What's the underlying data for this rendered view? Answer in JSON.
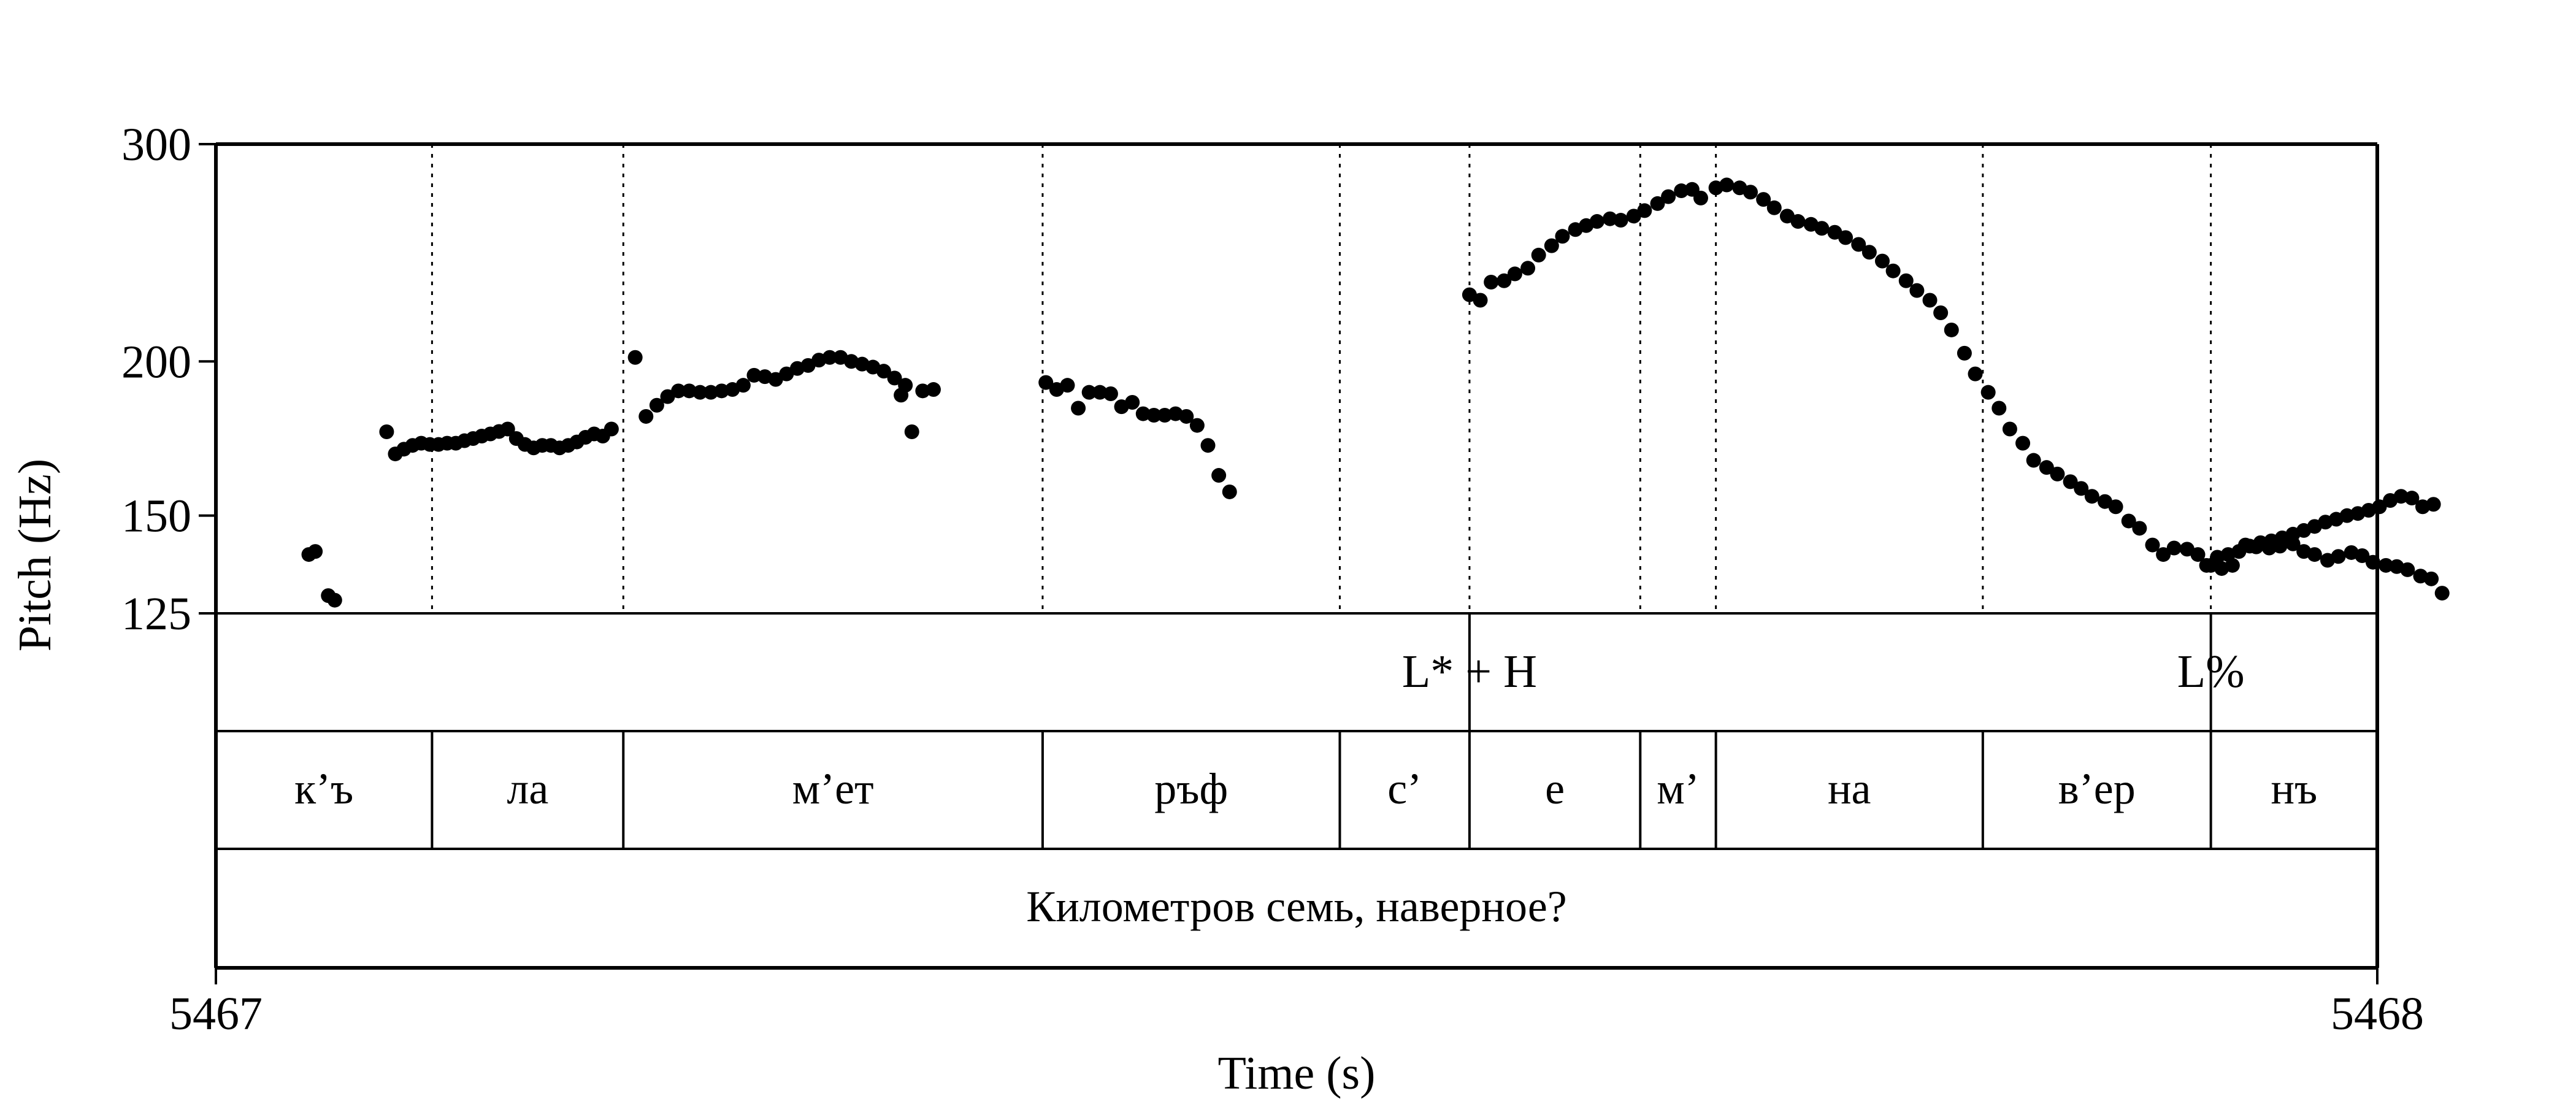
{
  "chart_data": {
    "type": "scatter",
    "ylabel": "Pitch (Hz)",
    "xlabel": "Time (s)",
    "y_scale": "log",
    "ylim": [
      125,
      300
    ],
    "xlim": [
      5467,
      5468
    ],
    "yticks": [
      125,
      150,
      200,
      300
    ],
    "xtick_labels": [
      "5467",
      "5468"
    ],
    "dotted_boundaries_s": [
      5467.1,
      5467.1885,
      5467.3825,
      5467.52,
      5467.58,
      5467.659,
      5467.694,
      5467.8175,
      5467.923
    ],
    "points": [
      [
        5467.043,
        139.5
      ],
      [
        5467.046,
        140.3
      ],
      [
        5467.052,
        129.2
      ],
      [
        5467.055,
        128.1
      ],
      [
        5467.079,
        175.4
      ],
      [
        5467.083,
        168.3
      ],
      [
        5467.087,
        169.8
      ],
      [
        5467.091,
        171.0
      ],
      [
        5467.095,
        171.7
      ],
      [
        5467.099,
        171.3
      ],
      [
        5467.103,
        171.3
      ],
      [
        5467.107,
        171.7
      ],
      [
        5467.111,
        171.7
      ],
      [
        5467.115,
        172.5
      ],
      [
        5467.119,
        173.2
      ],
      [
        5467.123,
        174.0
      ],
      [
        5467.127,
        174.7
      ],
      [
        5467.131,
        175.5
      ],
      [
        5467.135,
        176.3
      ],
      [
        5467.139,
        173.2
      ],
      [
        5467.143,
        171.3
      ],
      [
        5467.147,
        170.2
      ],
      [
        5467.151,
        171.0
      ],
      [
        5467.155,
        171.0
      ],
      [
        5467.159,
        170.2
      ],
      [
        5467.163,
        171.0
      ],
      [
        5467.167,
        172.1
      ],
      [
        5467.171,
        173.6
      ],
      [
        5467.175,
        174.7
      ],
      [
        5467.179,
        174.0
      ],
      [
        5467.183,
        176.3
      ],
      [
        5467.194,
        201.5
      ],
      [
        5467.199,
        180.5
      ],
      [
        5467.204,
        184.3
      ],
      [
        5467.209,
        187.3
      ],
      [
        5467.214,
        189.3
      ],
      [
        5467.219,
        189.3
      ],
      [
        5467.224,
        188.8
      ],
      [
        5467.229,
        188.8
      ],
      [
        5467.234,
        189.3
      ],
      [
        5467.239,
        189.8
      ],
      [
        5467.244,
        191.3
      ],
      [
        5467.249,
        194.9
      ],
      [
        5467.254,
        194.4
      ],
      [
        5467.259,
        193.4
      ],
      [
        5467.264,
        195.4
      ],
      [
        5467.269,
        197.4
      ],
      [
        5467.274,
        198.5
      ],
      [
        5467.279,
        200.5
      ],
      [
        5467.284,
        201.5
      ],
      [
        5467.289,
        201.5
      ],
      [
        5467.294,
        200.0
      ],
      [
        5467.299,
        199.0
      ],
      [
        5467.304,
        197.9
      ],
      [
        5467.309,
        196.4
      ],
      [
        5467.314,
        193.9
      ],
      [
        5467.319,
        191.3
      ],
      [
        5467.317,
        187.8
      ],
      [
        5467.322,
        175.4
      ],
      [
        5467.327,
        189.3
      ],
      [
        5467.332,
        189.8
      ],
      [
        5467.384,
        192.3
      ],
      [
        5467.389,
        189.8
      ],
      [
        5467.394,
        191.3
      ],
      [
        5467.399,
        183.3
      ],
      [
        5467.404,
        188.8
      ],
      [
        5467.409,
        188.8
      ],
      [
        5467.414,
        188.3
      ],
      [
        5467.419,
        183.8
      ],
      [
        5467.424,
        185.3
      ],
      [
        5467.429,
        181.4
      ],
      [
        5467.434,
        180.9
      ],
      [
        5467.439,
        180.9
      ],
      [
        5467.444,
        181.4
      ],
      [
        5467.449,
        180.5
      ],
      [
        5467.454,
        177.5
      ],
      [
        5467.459,
        171.0
      ],
      [
        5467.464,
        161.7
      ],
      [
        5467.469,
        156.8
      ],
      [
        5467.58,
        226.5
      ],
      [
        5467.585,
        224.2
      ],
      [
        5467.59,
        231.9
      ],
      [
        5467.596,
        232.5
      ],
      [
        5467.601,
        235.5
      ],
      [
        5467.607,
        238.0
      ],
      [
        5467.612,
        243.9
      ],
      [
        5467.618,
        248.2
      ],
      [
        5467.623,
        252.6
      ],
      [
        5467.629,
        255.8
      ],
      [
        5467.634,
        257.7
      ],
      [
        5467.639,
        259.7
      ],
      [
        5467.645,
        261.0
      ],
      [
        5467.65,
        260.3
      ],
      [
        5467.656,
        262.3
      ],
      [
        5467.661,
        265.0
      ],
      [
        5467.667,
        268.5
      ],
      [
        5467.672,
        272.0
      ],
      [
        5467.678,
        275.0
      ],
      [
        5467.683,
        275.7
      ],
      [
        5467.687,
        271.3
      ],
      [
        5467.694,
        276.5
      ],
      [
        5467.699,
        278.0
      ],
      [
        5467.705,
        276.5
      ],
      [
        5467.71,
        274.3
      ],
      [
        5467.716,
        270.6
      ],
      [
        5467.721,
        266.4
      ],
      [
        5467.727,
        262.3
      ],
      [
        5467.732,
        259.7
      ],
      [
        5467.738,
        258.3
      ],
      [
        5467.743,
        256.4
      ],
      [
        5467.749,
        254.5
      ],
      [
        5467.754,
        252.0
      ],
      [
        5467.76,
        248.8
      ],
      [
        5467.765,
        245.2
      ],
      [
        5467.771,
        241.2
      ],
      [
        5467.776,
        236.8
      ],
      [
        5467.782,
        232.5
      ],
      [
        5467.787,
        228.3
      ],
      [
        5467.793,
        224.2
      ],
      [
        5467.798,
        219.0
      ],
      [
        5467.803,
        212.1
      ],
      [
        5467.809,
        203.1
      ],
      [
        5467.814,
        195.4
      ],
      [
        5467.82,
        188.8
      ],
      [
        5467.825,
        183.3
      ],
      [
        5467.83,
        176.3
      ],
      [
        5467.836,
        171.7
      ],
      [
        5467.841,
        166.3
      ],
      [
        5467.847,
        164.1
      ],
      [
        5467.852,
        162.1
      ],
      [
        5467.858,
        159.8
      ],
      [
        5467.863,
        157.8
      ],
      [
        5467.868,
        155.5
      ],
      [
        5467.874,
        154.0
      ],
      [
        5467.879,
        152.5
      ],
      [
        5467.885,
        148.5
      ],
      [
        5467.89,
        146.5
      ],
      [
        5467.896,
        142.0
      ],
      [
        5467.901,
        139.5
      ],
      [
        5467.906,
        141.2
      ],
      [
        5467.912,
        140.9
      ],
      [
        5467.917,
        139.5
      ],
      [
        5467.923,
        136.7
      ],
      [
        5467.928,
        135.9
      ],
      [
        5467.933,
        136.7
      ],
      [
        5467.939,
        142.0
      ],
      [
        5467.944,
        141.5
      ],
      [
        5467.95,
        141.2
      ],
      [
        5467.955,
        141.7
      ],
      [
        5467.961,
        142.3
      ],
      [
        5467.966,
        140.3
      ],
      [
        5467.971,
        139.5
      ],
      [
        5467.977,
        138.0
      ],
      [
        5467.982,
        139.0
      ],
      [
        5467.988,
        140.0
      ],
      [
        5467.993,
        139.2
      ],
      [
        5467.998,
        137.5
      ],
      [
        5468.004,
        136.7
      ],
      [
        5468.009,
        136.4
      ],
      [
        5468.014,
        135.6
      ],
      [
        5468.02,
        134.0
      ],
      [
        5468.025,
        133.3
      ],
      [
        5468.03,
        129.8
      ]
    ],
    "points_tail": [
      [
        5467.921,
        136.7
      ],
      [
        5467.926,
        138.8
      ],
      [
        5467.931,
        139.5
      ],
      [
        5467.936,
        140.3
      ],
      [
        5467.941,
        141.7
      ],
      [
        5467.946,
        142.6
      ],
      [
        5467.951,
        143.1
      ],
      [
        5467.956,
        143.9
      ],
      [
        5467.961,
        144.9
      ],
      [
        5467.966,
        145.9
      ],
      [
        5467.971,
        147.0
      ],
      [
        5467.976,
        148.2
      ],
      [
        5467.981,
        149.0
      ],
      [
        5467.986,
        150.0
      ],
      [
        5467.991,
        150.6
      ],
      [
        5467.996,
        151.5
      ],
      [
        5468.001,
        152.5
      ],
      [
        5468.006,
        154.3
      ],
      [
        5468.011,
        155.5
      ],
      [
        5468.016,
        155.0
      ],
      [
        5468.021,
        152.5
      ],
      [
        5468.026,
        153.2
      ]
    ]
  },
  "tone_tier": [
    {
      "label": "L* + H",
      "time_s": 5467.58
    },
    {
      "label": "L%",
      "time_s": 5467.923
    }
  ],
  "syllable_tier": [
    {
      "label": "к’ъ",
      "start_s": 5467.0,
      "end_s": 5467.1
    },
    {
      "label": "ла",
      "start_s": 5467.1,
      "end_s": 5467.1885
    },
    {
      "label": "м’ет",
      "start_s": 5467.1885,
      "end_s": 5467.3825
    },
    {
      "label": "ръф",
      "start_s": 5467.3825,
      "end_s": 5467.52
    },
    {
      "label": "с’",
      "start_s": 5467.52,
      "end_s": 5467.58
    },
    {
      "label": "е",
      "start_s": 5467.58,
      "end_s": 5467.659
    },
    {
      "label": "м’",
      "start_s": 5467.659,
      "end_s": 5467.694
    },
    {
      "label": "на",
      "start_s": 5467.694,
      "end_s": 5467.8175
    },
    {
      "label": "в’ер",
      "start_s": 5467.8175,
      "end_s": 5467.923
    },
    {
      "label": "нъ",
      "start_s": 5467.923,
      "end_s": 5468.0
    }
  ],
  "sentence_tier": {
    "label": "Километров семь, наверное?"
  }
}
